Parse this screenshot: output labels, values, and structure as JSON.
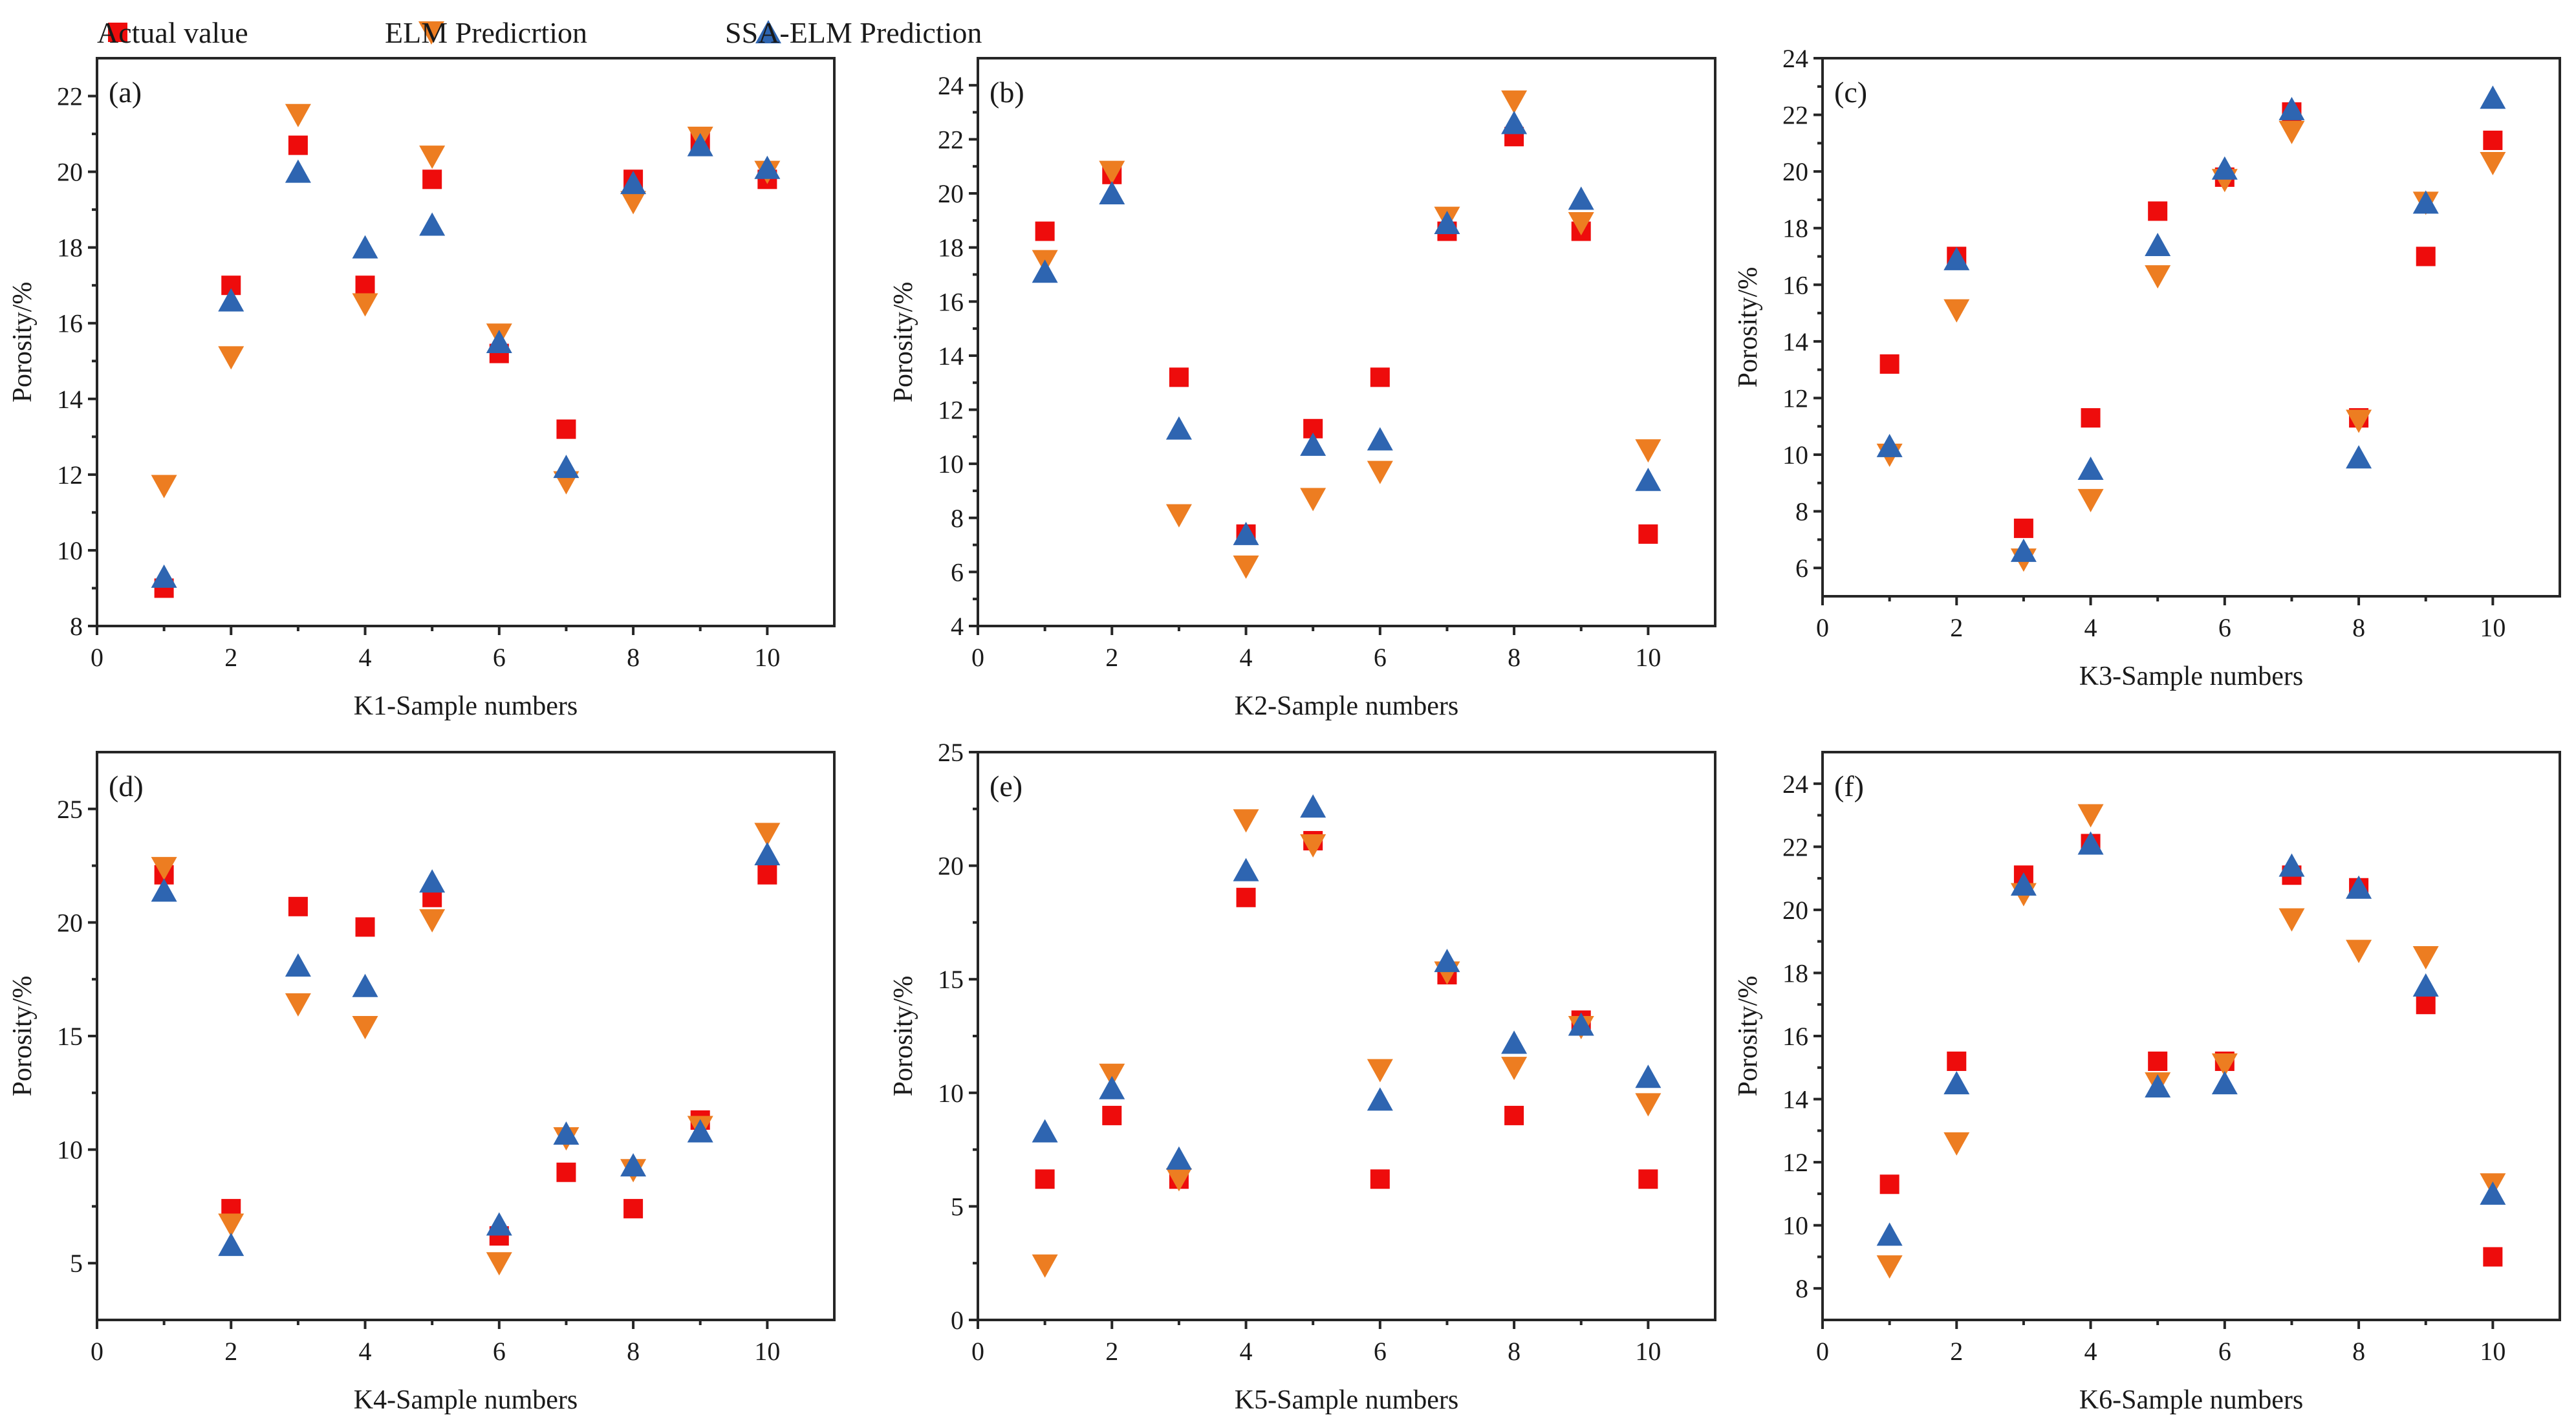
{
  "legend": [
    {
      "name": "Actual value",
      "marker": "square",
      "color": "#ee0c0c"
    },
    {
      "name": "ELM Predicrtion",
      "marker": "triangle-down",
      "color": "#ed7d21"
    },
    {
      "name": "SSA-ELM Prediction",
      "marker": "triangle-up",
      "color": "#2e65b1"
    }
  ],
  "chart_data": [
    {
      "type": "scatter",
      "panel_label": "(a)",
      "xlabel": "K1-Sample numbers",
      "ylabel": "Porosity/%",
      "xlim": [
        0,
        11
      ],
      "ylim": [
        8,
        23
      ],
      "xticks": [
        0,
        2,
        4,
        6,
        8,
        10
      ],
      "yticks": [
        8,
        10,
        12,
        14,
        16,
        18,
        20,
        22
      ],
      "x": [
        1,
        2,
        3,
        4,
        5,
        6,
        7,
        8,
        9,
        10
      ],
      "series": [
        {
          "name": "Actual value",
          "values": [
            9.0,
            17.0,
            20.7,
            17.0,
            19.8,
            15.2,
            13.2,
            19.8,
            20.8,
            19.8
          ]
        },
        {
          "name": "ELM Predicrtion",
          "values": [
            11.7,
            15.1,
            21.5,
            16.5,
            20.4,
            15.7,
            11.8,
            19.2,
            20.9,
            20.0
          ]
        },
        {
          "name": "SSA-ELM Prediction",
          "values": [
            9.3,
            16.6,
            20.0,
            18.0,
            18.6,
            15.5,
            12.2,
            19.7,
            20.7,
            20.1
          ]
        }
      ]
    },
    {
      "type": "scatter",
      "panel_label": "(b)",
      "xlabel": "K2-Sample numbers",
      "ylabel": "Porosity/%",
      "xlim": [
        0,
        11
      ],
      "ylim": [
        4,
        25
      ],
      "xticks": [
        0,
        2,
        4,
        6,
        8,
        10
      ],
      "yticks": [
        4,
        6,
        8,
        10,
        12,
        14,
        16,
        18,
        20,
        22,
        24
      ],
      "x": [
        1,
        2,
        3,
        4,
        5,
        6,
        7,
        8,
        9,
        10
      ],
      "series": [
        {
          "name": "Actual value",
          "values": [
            18.6,
            20.7,
            13.2,
            7.4,
            11.3,
            13.2,
            18.6,
            22.1,
            18.6,
            7.4
          ]
        },
        {
          "name": "ELM Predicrtion",
          "values": [
            17.5,
            20.8,
            8.1,
            6.2,
            8.7,
            9.7,
            19.1,
            23.4,
            18.9,
            10.5
          ]
        },
        {
          "name": "SSA-ELM Prediction",
          "values": [
            17.1,
            20.0,
            11.3,
            7.4,
            10.7,
            10.9,
            18.9,
            22.6,
            19.8,
            9.4
          ]
        }
      ]
    },
    {
      "type": "scatter",
      "panel_label": "(c)",
      "xlabel": "K3-Sample numbers",
      "ylabel": "Porosity/%",
      "xlim": [
        0,
        11
      ],
      "ylim": [
        5,
        24
      ],
      "xticks": [
        0,
        2,
        4,
        6,
        8,
        10
      ],
      "yticks": [
        6,
        8,
        10,
        12,
        14,
        16,
        18,
        20,
        22,
        24
      ],
      "x": [
        1,
        2,
        3,
        4,
        5,
        6,
        7,
        8,
        9,
        10
      ],
      "series": [
        {
          "name": "Actual value",
          "values": [
            13.2,
            17.0,
            7.4,
            11.3,
            18.6,
            19.8,
            22.1,
            11.3,
            17.0,
            21.1
          ]
        },
        {
          "name": "ELM Predicrtion",
          "values": [
            10.0,
            15.1,
            6.3,
            8.4,
            16.3,
            19.7,
            21.4,
            11.2,
            18.9,
            20.3
          ]
        },
        {
          "name": "SSA-ELM Prediction",
          "values": [
            10.3,
            16.9,
            6.6,
            9.5,
            17.4,
            20.1,
            22.2,
            9.9,
            18.9,
            22.6
          ]
        }
      ]
    },
    {
      "type": "scatter",
      "panel_label": "(d)",
      "xlabel": "K4-Sample numbers",
      "ylabel": "Porosity/%",
      "xlim": [
        0,
        11
      ],
      "ylim": [
        2.5,
        27.5
      ],
      "xticks": [
        0,
        2,
        4,
        6,
        8,
        10
      ],
      "yticks": [
        5,
        10,
        15,
        20,
        25
      ],
      "x": [
        1,
        2,
        3,
        4,
        5,
        6,
        7,
        8,
        9,
        10
      ],
      "series": [
        {
          "name": "Actual value",
          "values": [
            22.1,
            7.4,
            20.7,
            19.8,
            21.1,
            6.2,
            9.0,
            7.4,
            11.3,
            22.1
          ]
        },
        {
          "name": "ELM Predicrtion",
          "values": [
            22.4,
            6.7,
            16.4,
            15.4,
            20.1,
            5.0,
            10.5,
            9.1,
            11.0,
            23.9
          ]
        },
        {
          "name": "SSA-ELM Prediction",
          "values": [
            21.4,
            5.8,
            18.1,
            17.2,
            21.8,
            6.7,
            10.7,
            9.3,
            10.8,
            23.0
          ]
        }
      ]
    },
    {
      "type": "scatter",
      "panel_label": "(e)",
      "xlabel": "K5-Sample numbers",
      "ylabel": "Porosity/%",
      "xlim": [
        0,
        11
      ],
      "ylim": [
        0,
        25
      ],
      "xticks": [
        0,
        2,
        4,
        6,
        8,
        10
      ],
      "yticks": [
        0,
        5,
        10,
        15,
        20,
        25
      ],
      "x": [
        1,
        2,
        3,
        4,
        5,
        6,
        7,
        8,
        9,
        10
      ],
      "series": [
        {
          "name": "Actual value",
          "values": [
            6.2,
            9.0,
            6.2,
            18.6,
            21.1,
            6.2,
            15.2,
            9.0,
            13.2,
            6.2
          ]
        },
        {
          "name": "ELM Predicrtion",
          "values": [
            2.4,
            10.8,
            6.2,
            22.0,
            20.9,
            11.0,
            15.3,
            11.1,
            12.9,
            9.5
          ]
        },
        {
          "name": "SSA-ELM Prediction",
          "values": [
            8.3,
            10.2,
            7.1,
            19.8,
            22.6,
            9.7,
            15.8,
            12.2,
            13.0,
            10.7
          ]
        }
      ]
    },
    {
      "type": "scatter",
      "panel_label": "(f)",
      "xlabel": "K6-Sample numbers",
      "ylabel": "Porosity/%",
      "xlim": [
        0,
        11
      ],
      "ylim": [
        7,
        25
      ],
      "xticks": [
        0,
        2,
        4,
        6,
        8,
        10
      ],
      "yticks": [
        8,
        10,
        12,
        14,
        16,
        18,
        20,
        22,
        24
      ],
      "x": [
        1,
        2,
        3,
        4,
        5,
        6,
        7,
        8,
        9,
        10
      ],
      "series": [
        {
          "name": "Actual value",
          "values": [
            11.3,
            15.2,
            21.1,
            22.1,
            15.2,
            15.2,
            21.1,
            20.7,
            17.0,
            9.0
          ]
        },
        {
          "name": "ELM Predicrtion",
          "values": [
            8.7,
            12.6,
            20.5,
            23.0,
            14.5,
            15.1,
            19.7,
            18.7,
            18.5,
            11.3
          ]
        },
        {
          "name": "SSA-ELM Prediction",
          "values": [
            9.7,
            14.5,
            20.8,
            22.1,
            14.4,
            14.5,
            21.4,
            20.7,
            17.6,
            11.0
          ]
        }
      ]
    }
  ]
}
